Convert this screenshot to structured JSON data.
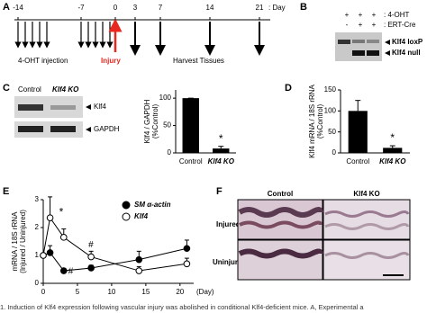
{
  "panels": {
    "A": {
      "letter": "A",
      "days": [
        "-14",
        "-7",
        "0",
        "3",
        "7",
        "14",
        "21"
      ],
      "day_unit": ": Day",
      "injection": "4-OHT injection",
      "injury": "Injury",
      "harvest": "Harvest Tissues"
    },
    "B": {
      "letter": "B",
      "row1_signs": [
        "+",
        "+",
        "+"
      ],
      "row1_label": ": 4-OHT",
      "row2_signs": [
        "-",
        "+",
        "+"
      ],
      "row2_label": ": ERT-Cre",
      "band1": "Klf4 loxP",
      "band2": "Klf4 null"
    },
    "C": {
      "letter": "C",
      "lanes": [
        "Control",
        "Klf4 KO"
      ],
      "blot1": "Klf4",
      "blot2": "GAPDH"
    },
    "D": {
      "letter": "D"
    },
    "E": {
      "letter": "E"
    },
    "F": {
      "letter": "F",
      "columns": [
        "Control",
        "Klf4 KO"
      ],
      "rows": [
        "Injured",
        "Uninjured"
      ]
    }
  },
  "caption": "1. Induction of Klf4 expression following vascular injury was abolished in conditional Klf4-deficient mice. A, Experimental a",
  "chart_data": [
    {
      "type": "bar",
      "ylabel": [
        "Klf4 / GAPDH",
        "(%Control)"
      ],
      "categories": [
        "Control",
        "Klf4 KO"
      ],
      "values": [
        100,
        8
      ],
      "errors": [
        0,
        4
      ],
      "color": "#000000",
      "ylim": [
        0,
        115
      ],
      "yticks": [
        0,
        50,
        100
      ],
      "annotation": "*"
    },
    {
      "type": "bar",
      "ylabel": [
        "Klf4 mRNA / 18S rRNA",
        "(%Control)"
      ],
      "categories": [
        "Control",
        "Klf4 KO"
      ],
      "values": [
        100,
        12
      ],
      "errors": [
        25,
        5
      ],
      "color": "#000000",
      "ylim": [
        0,
        150
      ],
      "yticks": [
        0,
        50,
        100,
        150
      ],
      "annotation": "*"
    },
    {
      "type": "line",
      "ylabel": [
        "mRNA / 18S rRNA",
        "(Injured / Uninjured)"
      ],
      "xlabel": "(Day)",
      "x": [
        0,
        1,
        3,
        7,
        14,
        21
      ],
      "series": [
        {
          "name": "SM α-actin",
          "color": "#000000",
          "fill": "#000000",
          "values": [
            1.0,
            1.1,
            0.45,
            0.55,
            0.85,
            1.25
          ],
          "errors": [
            0,
            0.25,
            0.08,
            0.1,
            0.3,
            0.3
          ]
        },
        {
          "name": "Klf4",
          "color": "#000000",
          "fill": "#ffffff",
          "values": [
            1.0,
            2.35,
            1.65,
            0.95,
            0.45,
            0.7
          ],
          "errors": [
            0,
            0.75,
            0.3,
            0.2,
            0.15,
            0.2
          ]
        }
      ],
      "xlim": [
        0,
        22
      ],
      "xticks": [
        0,
        5,
        10,
        15,
        20
      ],
      "ylim": [
        0,
        3
      ],
      "yticks": [
        0,
        1,
        2,
        3
      ],
      "annotations": [
        "*",
        "#",
        "#"
      ]
    }
  ]
}
